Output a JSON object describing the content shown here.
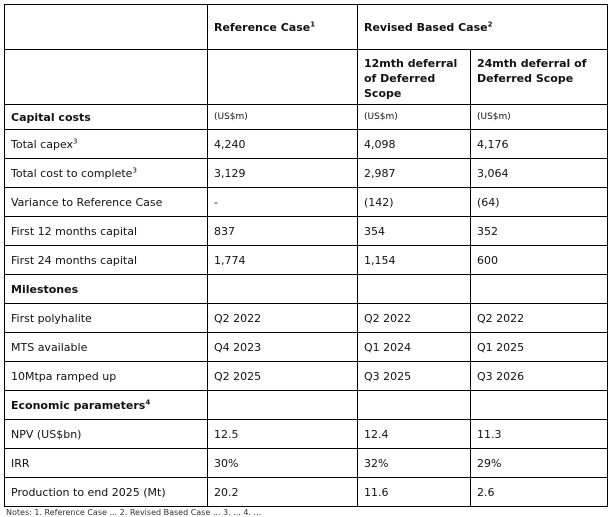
{
  "header": {
    "reference_case": "Reference Case",
    "reference_case_sup": "1",
    "revised_case": "Revised Based Case",
    "revised_case_sup": "2",
    "col_12mth": "12mth deferral of Deferred Scope",
    "col_24mth": "24mth deferral of Deferred Scope"
  },
  "sections": {
    "capital_costs": {
      "title": "Capital costs",
      "unit_ref": "(US$m)",
      "unit_12": "(US$m)",
      "unit_24": "(US$m)"
    },
    "milestones": {
      "title": "Milestones"
    },
    "economic": {
      "title": "Economic parameters",
      "title_sup": "4"
    }
  },
  "rows": [
    {
      "label": "Total capex",
      "sup": "3",
      "ref": "4,240",
      "m12": "4,098",
      "m24": "4,176"
    },
    {
      "label": "Total cost to complete",
      "sup": "3",
      "ref": "3,129",
      "m12": "2,987",
      "m24": "3,064"
    },
    {
      "label": "Variance to Reference Case",
      "ref": "-",
      "m12": "(142)",
      "m24": "(64)"
    },
    {
      "label": "First 12 months capital",
      "ref": "837",
      "m12": "354",
      "m24": "352"
    },
    {
      "label": "First 24 months capital",
      "ref": "1,774",
      "m12": "1,154",
      "m24": "600"
    },
    {
      "label": "First polyhalite",
      "ref": "Q2 2022",
      "m12": "Q2 2022",
      "m24": "Q2 2022"
    },
    {
      "label": "MTS available",
      "ref": "Q4 2023",
      "m12": "Q1 2024",
      "m24": "Q1 2025"
    },
    {
      "label": "10Mtpa ramped up",
      "ref": "Q2 2025",
      "m12": "Q3 2025",
      "m24": "Q3 2026"
    },
    {
      "label": "NPV (US$bn)",
      "ref": "12.5",
      "m12": "12.4",
      "m24": "11.3"
    },
    {
      "label": "IRR",
      "ref": "30%",
      "m12": "32%",
      "m24": "29%"
    },
    {
      "label": "Production to end 2025 (Mt)",
      "ref": "20.2",
      "m12": "11.6",
      "m24": "2.6"
    }
  ],
  "footnote": "Notes: 1. Reference Case ... 2. Revised Based Case ... 3. ... 4. ..."
}
